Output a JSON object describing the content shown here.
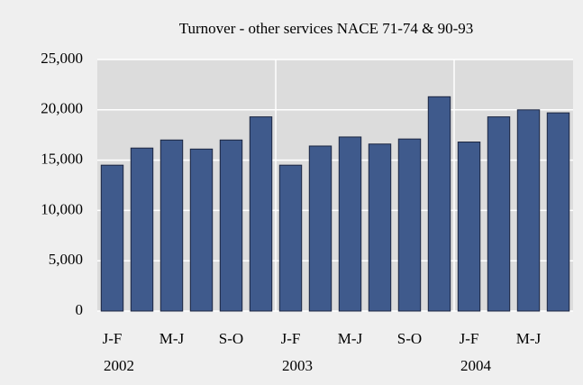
{
  "chart_data": {
    "type": "bar",
    "title": "Turnover - other services NACE 71-74 & 90-93",
    "groups": [
      {
        "label": "2002",
        "categories": [
          "J-F",
          null,
          "M-J",
          null,
          "S-O",
          null
        ]
      },
      {
        "label": "2003",
        "categories": [
          "J-F",
          null,
          "M-J",
          null,
          "S-O",
          null
        ]
      },
      {
        "label": "2004",
        "categories": [
          "J-F",
          null,
          "M-J",
          null
        ]
      }
    ],
    "values": [
      14500,
      16200,
      17000,
      16100,
      17000,
      19300,
      14500,
      16400,
      17300,
      16600,
      17100,
      21300,
      16800,
      19300,
      20000,
      19700
    ],
    "color": "#3f5a8c",
    "ylim": [
      0,
      25000
    ],
    "yticks": [
      0,
      {
        "value": 5000,
        "label": "5,000"
      },
      {
        "value": 10000,
        "label": "10,000"
      },
      {
        "value": 15000,
        "label": "15,000"
      },
      {
        "value": 20000,
        "label": "20,000"
      },
      {
        "value": 25000,
        "label": "25,000"
      }
    ],
    "grid": true
  }
}
